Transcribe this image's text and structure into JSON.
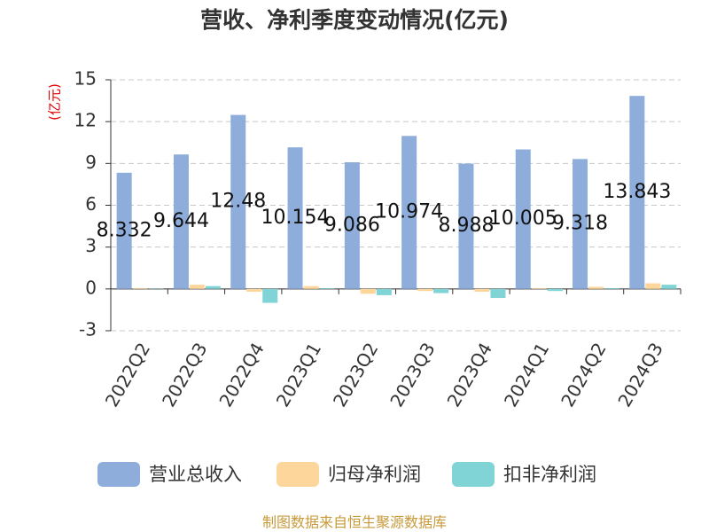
{
  "chart_data": {
    "type": "bar",
    "title": "营收、净利季度变动情况(亿元)",
    "y_label": "(亿元)",
    "source": "制图数据来自恒生聚源数据库",
    "categories": [
      "2022Q2",
      "2022Q3",
      "2022Q4",
      "2023Q1",
      "2023Q2",
      "2023Q3",
      "2023Q4",
      "2024Q1",
      "2024Q2",
      "2024Q3"
    ],
    "series": [
      {
        "name": "营业总收入",
        "color": "#8eaddb",
        "values": [
          8.332,
          9.644,
          12.48,
          10.154,
          9.086,
          10.974,
          8.988,
          10.005,
          9.318,
          13.843
        ],
        "show_labels": true
      },
      {
        "name": "归母净利润",
        "color": "#fdd69b",
        "values": [
          0.05,
          0.3,
          -0.2,
          0.2,
          -0.35,
          -0.15,
          -0.2,
          0.05,
          0.15,
          0.4
        ]
      },
      {
        "name": "扣非净利润",
        "color": "#80d4d6",
        "values": [
          0.02,
          0.2,
          -1.0,
          0.05,
          -0.45,
          -0.3,
          -0.65,
          -0.15,
          0.05,
          0.3
        ]
      }
    ],
    "ylim": [
      -3,
      15
    ],
    "yticks": [
      -3,
      0,
      3,
      6,
      9,
      12,
      15
    ],
    "grid": true
  }
}
